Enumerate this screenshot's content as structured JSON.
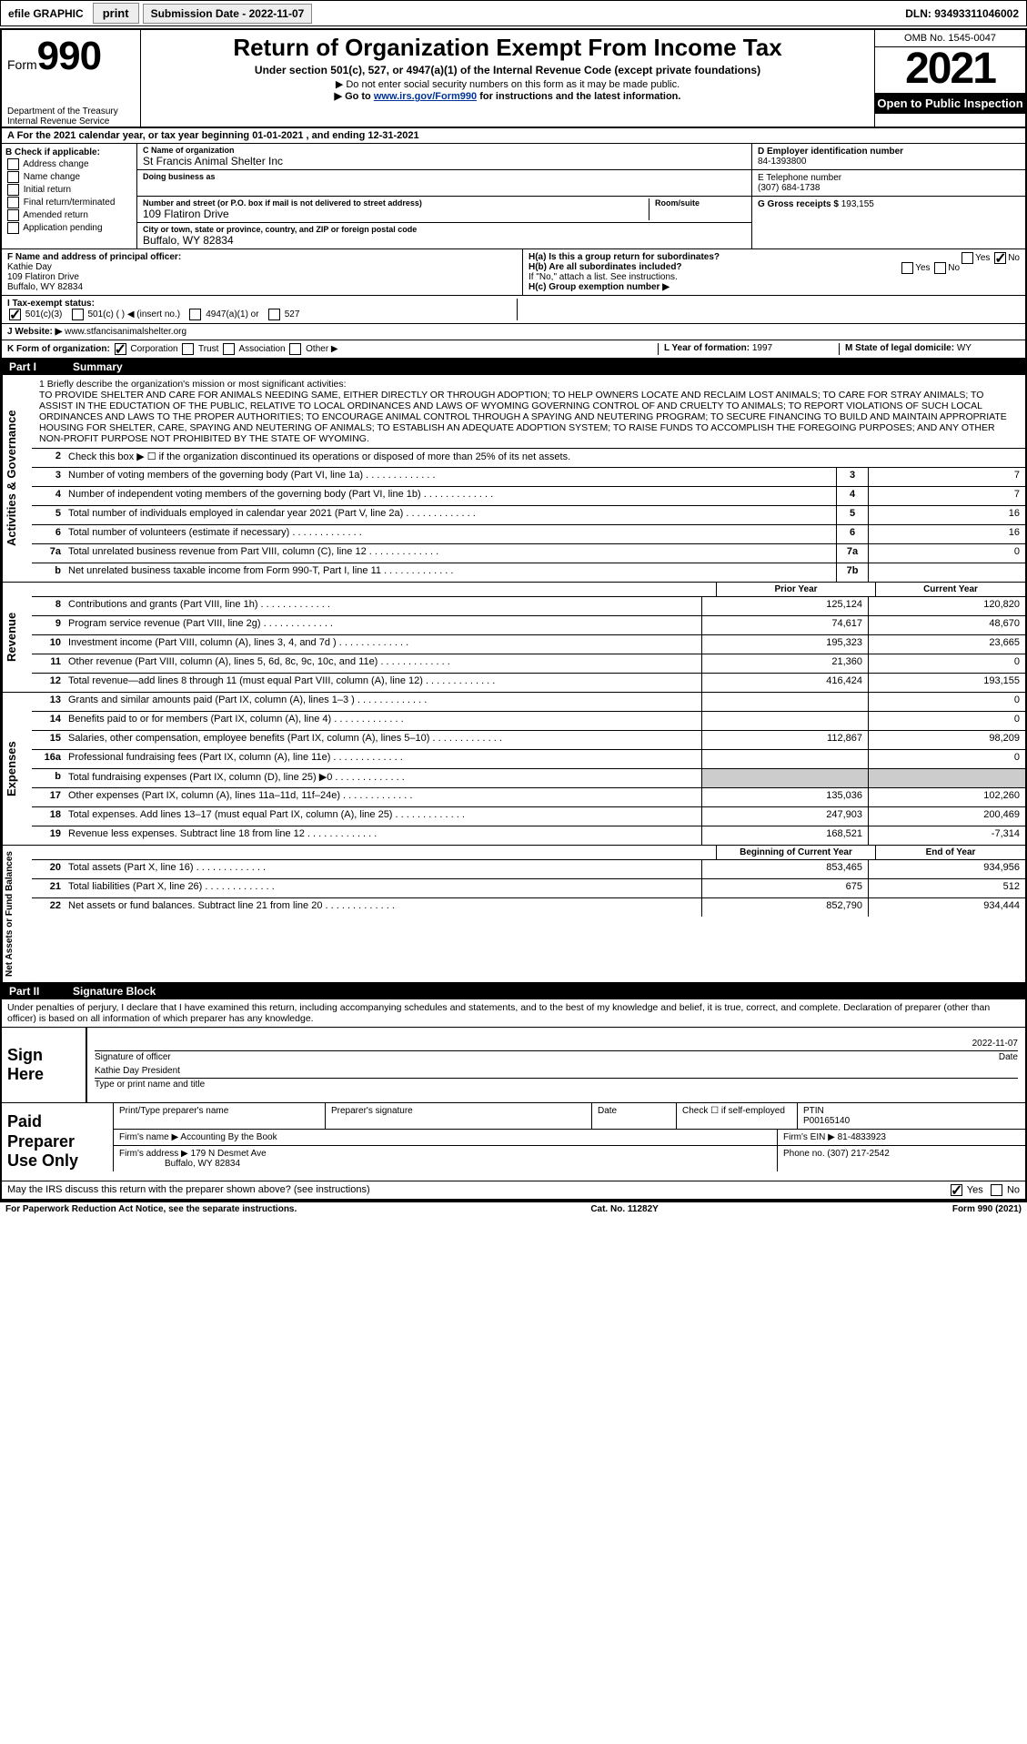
{
  "topbar": {
    "efile": "efile GRAPHIC",
    "print": "print",
    "submission": "Submission Date - 2022-11-07",
    "dln": "DLN: 93493311046002"
  },
  "header": {
    "form_label": "Form",
    "form_num": "990",
    "dept": "Department of the Treasury",
    "irs": "Internal Revenue Service",
    "title": "Return of Organization Exempt From Income Tax",
    "sub1": "Under section 501(c), 527, or 4947(a)(1) of the Internal Revenue Code (except private foundations)",
    "sub2a": "▶ Do not enter social security numbers on this form as it may be made public.",
    "sub2b_pre": "▶ Go to ",
    "sub2b_link": "www.irs.gov/Form990",
    "sub2b_post": " for instructions and the latest information.",
    "omb": "OMB No. 1545-0047",
    "year": "2021",
    "inspection": "Open to Public Inspection"
  },
  "rowA": "A For the 2021 calendar year, or tax year beginning 01-01-2021   , and ending 12-31-2021",
  "colB": {
    "title": "B Check if applicable:",
    "items": [
      "Address change",
      "Name change",
      "Initial return",
      "Final return/terminated",
      "Amended return",
      "Application pending"
    ]
  },
  "colC": {
    "name_lbl": "C Name of organization",
    "name": "St Francis Animal Shelter Inc",
    "dba_lbl": "Doing business as",
    "dba": "",
    "addr_lbl": "Number and street (or P.O. box if mail is not delivered to street address)",
    "addr": "109 Flatiron Drive",
    "room_lbl": "Room/suite",
    "city_lbl": "City or town, state or province, country, and ZIP or foreign postal code",
    "city": "Buffalo, WY 82834"
  },
  "colD": {
    "ein_lbl": "D Employer identification number",
    "ein": "84-1393800",
    "tel_lbl": "E Telephone number",
    "tel": "(307) 684-1738",
    "gross_lbl": "G Gross receipts $",
    "gross": "193,155"
  },
  "rowF": {
    "lbl": "F  Name and address of principal officer:",
    "name": "Kathie Day",
    "addr1": "109 Flatiron Drive",
    "addr2": "Buffalo, WY  82834"
  },
  "rowH": {
    "ha": "H(a)  Is this a group return for subordinates?",
    "ha_yes": "Yes",
    "ha_no": "No",
    "hb": "H(b)  Are all subordinates included?",
    "hb_yes": "Yes",
    "hb_no": "No",
    "hb_note": "If \"No,\" attach a list. See instructions.",
    "hc": "H(c)  Group exemption number ▶"
  },
  "rowI": {
    "lbl": "I   Tax-exempt status:",
    "opts": [
      "501(c)(3)",
      "501(c) (  ) ◀ (insert no.)",
      "4947(a)(1) or",
      "527"
    ]
  },
  "rowJ": {
    "lbl": "J  Website: ▶",
    "val": "www.stfancisanimalshelter.org"
  },
  "rowK": {
    "lbl": "K Form of organization:",
    "opts": [
      "Corporation",
      "Trust",
      "Association",
      "Other ▶"
    ],
    "L_lbl": "L Year of formation:",
    "L_val": "1997",
    "M_lbl": "M State of legal domicile:",
    "M_val": "WY"
  },
  "part1": {
    "label": "Part I",
    "title": "Summary"
  },
  "mission": {
    "lbl": "1   Briefly describe the organization's mission or most significant activities:",
    "txt": "TO PROVIDE SHELTER AND CARE FOR ANIMALS NEEDING SAME, EITHER DIRECTLY OR THROUGH ADOPTION; TO HELP OWNERS LOCATE AND RECLAIM LOST ANIMALS; TO CARE FOR STRAY ANIMALS; TO ASSIST IN THE EDUCTATION OF THE PUBLIC, RELATIVE TO LOCAL ORDINANCES AND LAWS OF WYOMING GOVERNING CONTROL OF AND CRUELTY TO ANIMALS; TO REPORT VIOLATIONS OF SUCH LOCAL ORDINANCES AND LAWS TO THE PROPER AUTHORITIES; TO ENCOURAGE ANIMAL CONTROL THROUGH A SPAYING AND NEUTERING PROGRAM; TO SECURE FINANCING TO BUILD AND MAINTAIN APPROPRIATE HOUSING FOR SHELTER, CARE, SPAYING AND NEUTERING OF ANIMALS; TO ESTABLISH AN ADEQUATE ADOPTION SYSTEM; TO RAISE FUNDS TO ACCOMPLISH THE FOREGOING PURPOSES; AND ANY OTHER NON-PROFIT PURPOSE NOT PROHIBITED BY THE STATE OF WYOMING."
  },
  "gov_lines": [
    {
      "n": "2",
      "d": "Check this box ▶ ☐ if the organization discontinued its operations or disposed of more than 25% of its net assets."
    },
    {
      "n": "3",
      "d": "Number of voting members of the governing body (Part VI, line 1a)",
      "box": "3",
      "v": "7"
    },
    {
      "n": "4",
      "d": "Number of independent voting members of the governing body (Part VI, line 1b)",
      "box": "4",
      "v": "7"
    },
    {
      "n": "5",
      "d": "Total number of individuals employed in calendar year 2021 (Part V, line 2a)",
      "box": "5",
      "v": "16"
    },
    {
      "n": "6",
      "d": "Total number of volunteers (estimate if necessary)",
      "box": "6",
      "v": "16"
    },
    {
      "n": "7a",
      "d": "Total unrelated business revenue from Part VIII, column (C), line 12",
      "box": "7a",
      "v": "0"
    },
    {
      "n": "b",
      "d": "Net unrelated business taxable income from Form 990-T, Part I, line 11",
      "box": "7b",
      "v": ""
    }
  ],
  "col_hdr": {
    "prior": "Prior Year",
    "current": "Current Year"
  },
  "rev_lines": [
    {
      "n": "8",
      "d": "Contributions and grants (Part VIII, line 1h)",
      "p": "125,124",
      "c": "120,820"
    },
    {
      "n": "9",
      "d": "Program service revenue (Part VIII, line 2g)",
      "p": "74,617",
      "c": "48,670"
    },
    {
      "n": "10",
      "d": "Investment income (Part VIII, column (A), lines 3, 4, and 7d )",
      "p": "195,323",
      "c": "23,665"
    },
    {
      "n": "11",
      "d": "Other revenue (Part VIII, column (A), lines 5, 6d, 8c, 9c, 10c, and 11e)",
      "p": "21,360",
      "c": "0"
    },
    {
      "n": "12",
      "d": "Total revenue—add lines 8 through 11 (must equal Part VIII, column (A), line 12)",
      "p": "416,424",
      "c": "193,155"
    }
  ],
  "exp_lines": [
    {
      "n": "13",
      "d": "Grants and similar amounts paid (Part IX, column (A), lines 1–3 )",
      "p": "",
      "c": "0"
    },
    {
      "n": "14",
      "d": "Benefits paid to or for members (Part IX, column (A), line 4)",
      "p": "",
      "c": "0"
    },
    {
      "n": "15",
      "d": "Salaries, other compensation, employee benefits (Part IX, column (A), lines 5–10)",
      "p": "112,867",
      "c": "98,209"
    },
    {
      "n": "16a",
      "d": "Professional fundraising fees (Part IX, column (A), line 11e)",
      "p": "",
      "c": "0"
    },
    {
      "n": "b",
      "d": "Total fundraising expenses (Part IX, column (D), line 25) ▶0",
      "p": "SHADE",
      "c": "SHADE"
    },
    {
      "n": "17",
      "d": "Other expenses (Part IX, column (A), lines 11a–11d, 11f–24e)",
      "p": "135,036",
      "c": "102,260"
    },
    {
      "n": "18",
      "d": "Total expenses. Add lines 13–17 (must equal Part IX, column (A), line 25)",
      "p": "247,903",
      "c": "200,469"
    },
    {
      "n": "19",
      "d": "Revenue less expenses. Subtract line 18 from line 12",
      "p": "168,521",
      "c": "-7,314"
    }
  ],
  "na_hdr": {
    "beg": "Beginning of Current Year",
    "end": "End of Year"
  },
  "na_lines": [
    {
      "n": "20",
      "d": "Total assets (Part X, line 16)",
      "p": "853,465",
      "c": "934,956"
    },
    {
      "n": "21",
      "d": "Total liabilities (Part X, line 26)",
      "p": "675",
      "c": "512"
    },
    {
      "n": "22",
      "d": "Net assets or fund balances. Subtract line 21 from line 20",
      "p": "852,790",
      "c": "934,444"
    }
  ],
  "part2": {
    "label": "Part II",
    "title": "Signature Block"
  },
  "sig_decl": "Under penalties of perjury, I declare that I have examined this return, including accompanying schedules and statements, and to the best of my knowledge and belief, it is true, correct, and complete. Declaration of preparer (other than officer) is based on all information of which preparer has any knowledge.",
  "sign": {
    "lbl": "Sign Here",
    "date": "2022-11-07",
    "sig_lbl": "Signature of officer",
    "date_lbl": "Date",
    "name": "Kathie Day  President",
    "name_lbl": "Type or print name and title"
  },
  "prep": {
    "lbl": "Paid Preparer Use Only",
    "h1": "Print/Type preparer's name",
    "h2": "Preparer's signature",
    "h3": "Date",
    "h4": "Check ☐ if self-employed",
    "ptin_lbl": "PTIN",
    "ptin": "P00165140",
    "firm_name_lbl": "Firm's name   ▶",
    "firm_name": "Accounting By the Book",
    "firm_ein_lbl": "Firm's EIN ▶",
    "firm_ein": "81-4833923",
    "firm_addr_lbl": "Firm's address ▶",
    "firm_addr1": "179 N Desmet Ave",
    "firm_addr2": "Buffalo, WY  82834",
    "phone_lbl": "Phone no.",
    "phone": "(307) 217-2542"
  },
  "may_irs": {
    "q": "May the IRS discuss this return with the preparer shown above? (see instructions)",
    "yes": "Yes",
    "no": "No"
  },
  "footer": {
    "left": "For Paperwork Reduction Act Notice, see the separate instructions.",
    "mid": "Cat. No. 11282Y",
    "right": "Form 990 (2021)"
  },
  "vtabs": {
    "gov": "Activities & Governance",
    "rev": "Revenue",
    "exp": "Expenses",
    "na": "Net Assets or Fund Balances"
  }
}
